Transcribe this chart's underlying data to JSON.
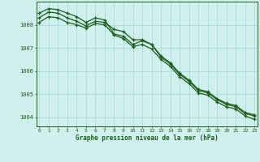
{
  "title": "Graphe pression niveau de la mer (hPa)",
  "background_color": "#cff0ec",
  "grid_color": "#a8dcd8",
  "line_color": "#1e5c1e",
  "marker_color": "#1e5c1e",
  "x_labels": [
    "0",
    "1",
    "2",
    "3",
    "4",
    "5",
    "6",
    "7",
    "8",
    "9",
    "10",
    "11",
    "12",
    "13",
    "14",
    "15",
    "16",
    "17",
    "18",
    "19",
    "20",
    "21",
    "22",
    "23"
  ],
  "y_ticks": [
    1004,
    1005,
    1006,
    1007,
    1008
  ],
  "ylim": [
    1003.6,
    1009.0
  ],
  "xlim": [
    -0.3,
    23.3
  ],
  "series": [
    [
      1008.3,
      1008.55,
      1008.5,
      1008.3,
      1008.15,
      1007.95,
      1008.15,
      1008.1,
      1007.8,
      1007.7,
      1007.35,
      1007.35,
      1007.15,
      1006.6,
      1006.3,
      1005.85,
      1005.55,
      1005.15,
      1005.05,
      1004.75,
      1004.55,
      1004.45,
      1004.15,
      1004.05
    ],
    [
      1008.5,
      1008.7,
      1008.65,
      1008.5,
      1008.35,
      1008.1,
      1008.3,
      1008.2,
      1007.6,
      1007.5,
      1007.15,
      1007.3,
      1007.15,
      1006.65,
      1006.35,
      1005.9,
      1005.6,
      1005.2,
      1005.1,
      1004.8,
      1004.6,
      1004.5,
      1004.2,
      1004.1
    ],
    [
      1008.1,
      1008.35,
      1008.3,
      1008.1,
      1008.0,
      1007.85,
      1008.05,
      1008.0,
      1007.55,
      1007.4,
      1007.05,
      1007.15,
      1006.95,
      1006.5,
      1006.2,
      1005.75,
      1005.45,
      1005.05,
      1004.95,
      1004.65,
      1004.45,
      1004.35,
      1004.05,
      1003.9
    ]
  ]
}
